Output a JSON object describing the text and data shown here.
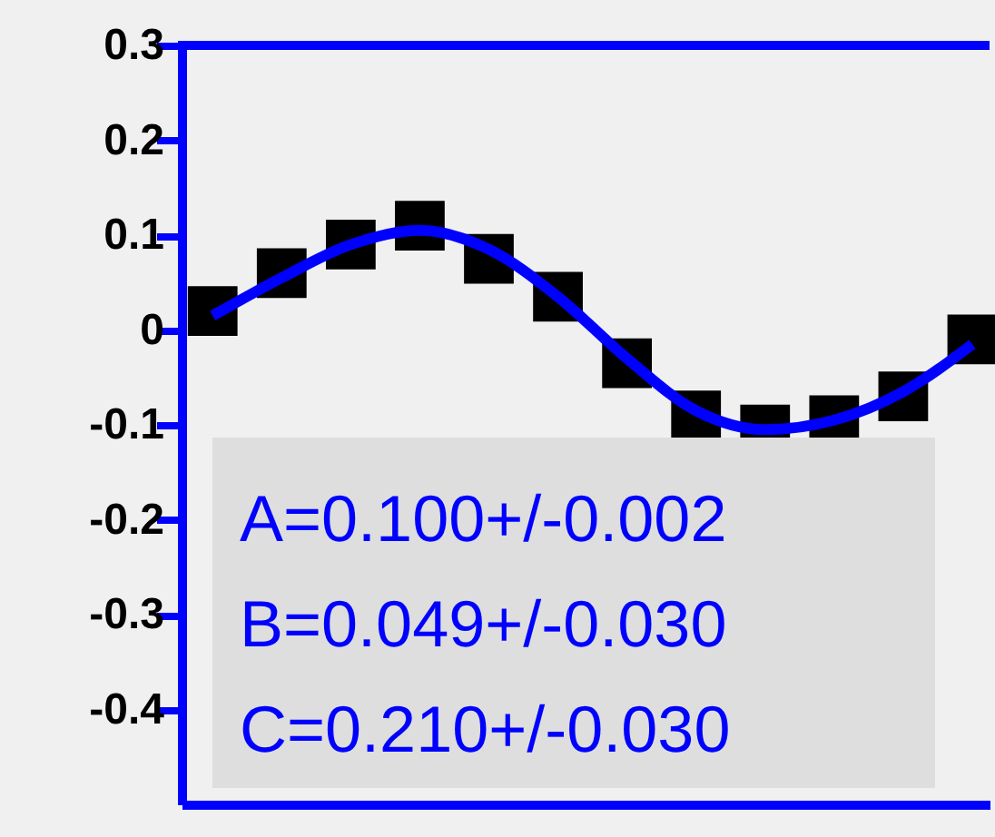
{
  "chart_data": {
    "type": "scatter",
    "categories": [
      null,
      null,
      null,
      null,
      null,
      null,
      null,
      null,
      null,
      null,
      null,
      null
    ],
    "series": [
      {
        "color": "#000000",
        "marker": "square",
        "values": [
          0.02,
          0.06,
          0.09,
          0.11,
          0.075,
          0.035,
          -0.035,
          -0.09,
          -0.105,
          -0.095,
          -0.07,
          -0.01
        ]
      },
      {
        "type": "line",
        "color": "#0000ff",
        "marker": "none",
        "line_style": "solid",
        "values": [
          0.015,
          0.055,
          0.09,
          0.105,
          0.085,
          0.035,
          -0.03,
          -0.085,
          -0.105,
          -0.095,
          -0.065,
          -0.015
        ]
      }
    ],
    "ylim": [
      -0.5,
      0.3
    ],
    "yticks": [
      -0.4,
      -0.3,
      -0.2,
      -0.1,
      0,
      0.1,
      0.2,
      0.3
    ],
    "tick_labels": "y",
    "annotations": [
      "A=0.100+/-0.002",
      "B=0.049+/-0.030",
      "C=0.210+/-0.030"
    ]
  }
}
